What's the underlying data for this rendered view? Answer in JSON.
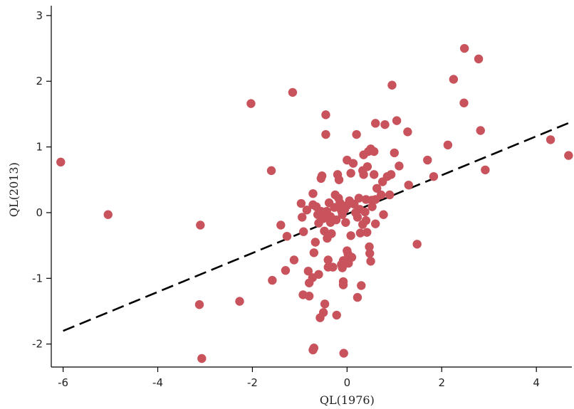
{
  "chart_data": {
    "type": "scatter",
    "xlabel": "QL(1976)",
    "ylabel": "QL(2013)",
    "xlim": [
      -6.25,
      4.75
    ],
    "ylim": [
      -2.35,
      3.15
    ],
    "xticks": [
      -6,
      -4,
      -2,
      0,
      2,
      4
    ],
    "yticks": [
      -2,
      -1,
      0,
      1,
      2,
      3
    ],
    "xtick_labels": [
      "-6",
      "-4",
      "-2",
      "0",
      "2",
      "4"
    ],
    "ytick_labels": [
      "-2",
      "-1",
      "0",
      "1",
      "2",
      "3"
    ],
    "grid": false,
    "legend": "none",
    "marker_color": "#c9535c",
    "line_color": "#000000",
    "fit_line": {
      "style": "dashed",
      "x": [
        -6.0,
        4.7
      ],
      "y": [
        -1.8,
        1.37
      ]
    },
    "points": [
      [
        -6.05,
        0.77
      ],
      [
        -5.05,
        -0.03
      ],
      [
        -3.1,
        -0.19
      ],
      [
        -3.12,
        -1.4
      ],
      [
        -3.07,
        -2.22
      ],
      [
        -2.27,
        -1.35
      ],
      [
        -2.03,
        1.66
      ],
      [
        -1.6,
        0.64
      ],
      [
        -1.58,
        -1.03
      ],
      [
        -1.4,
        -0.19
      ],
      [
        -1.27,
        -0.36
      ],
      [
        -1.3,
        -0.88
      ],
      [
        -1.15,
        1.83
      ],
      [
        -1.12,
        -0.72
      ],
      [
        -0.97,
        0.14
      ],
      [
        -0.95,
        -0.07
      ],
      [
        -0.92,
        -0.29
      ],
      [
        -0.93,
        -1.25
      ],
      [
        -0.85,
        0.04
      ],
      [
        -0.82,
        -0.89
      ],
      [
        -0.8,
        -1.27
      ],
      [
        -0.8,
        -1.07
      ],
      [
        -0.73,
        -0.99
      ],
      [
        -0.72,
        0.29
      ],
      [
        -0.72,
        0.12
      ],
      [
        -0.7,
        -0.61
      ],
      [
        -0.72,
        -2.09
      ],
      [
        -0.7,
        -2.06
      ],
      [
        -0.67,
        -0.45
      ],
      [
        -0.65,
        0.09
      ],
      [
        -0.62,
        -0.03
      ],
      [
        -0.6,
        -0.16
      ],
      [
        -0.6,
        -0.94
      ],
      [
        -0.57,
        -1.6
      ],
      [
        -0.55,
        0.52
      ],
      [
        -0.55,
        0.02
      ],
      [
        -0.53,
        0.56
      ],
      [
        -0.5,
        -0.09
      ],
      [
        -0.48,
        -0.28
      ],
      [
        -0.5,
        -1.52
      ],
      [
        -0.47,
        -1.39
      ],
      [
        -0.45,
        1.49
      ],
      [
        -0.45,
        1.19
      ],
      [
        -0.43,
        0.02
      ],
      [
        -0.42,
        -0.39
      ],
      [
        -0.4,
        -0.72
      ],
      [
        -0.4,
        -0.83
      ],
      [
        -0.38,
        0.15
      ],
      [
        -0.35,
        -0.06
      ],
      [
        -0.35,
        -0.15
      ],
      [
        -0.33,
        -0.32
      ],
      [
        -0.3,
        -0.83
      ],
      [
        -0.27,
        0.08
      ],
      [
        -0.25,
        0.27
      ],
      [
        -0.23,
        -0.11
      ],
      [
        -0.22,
        -1.56
      ],
      [
        -0.2,
        0.58
      ],
      [
        -0.18,
        0.22
      ],
      [
        -0.17,
        0.5
      ],
      [
        -0.15,
        0.15
      ],
      [
        -0.12,
        0.03
      ],
      [
        -0.1,
        -0.03
      ],
      [
        -0.12,
        -0.79
      ],
      [
        -0.1,
        -0.84
      ],
      [
        -0.08,
        -0.73
      ],
      [
        -0.08,
        -1.1
      ],
      [
        -0.08,
        -1.05
      ],
      [
        -0.07,
        -2.14
      ],
      [
        -0.05,
        0.05
      ],
      [
        -0.03,
        -0.15
      ],
      [
        0.0,
        0.8
      ],
      [
        0.0,
        0.11
      ],
      [
        0.0,
        -0.58
      ],
      [
        0.02,
        -0.63
      ],
      [
        0.03,
        -0.7
      ],
      [
        0.03,
        -0.77
      ],
      [
        0.05,
        0.18
      ],
      [
        0.08,
        0.6
      ],
      [
        0.08,
        -0.35
      ],
      [
        0.1,
        -0.68
      ],
      [
        0.13,
        0.75
      ],
      [
        0.15,
        0.13
      ],
      [
        0.18,
        0.0
      ],
      [
        0.2,
        1.19
      ],
      [
        0.22,
        -0.07
      ],
      [
        0.22,
        -1.29
      ],
      [
        0.25,
        0.22
      ],
      [
        0.27,
        0.05
      ],
      [
        0.28,
        -0.31
      ],
      [
        0.3,
        -1.11
      ],
      [
        0.33,
        0.64
      ],
      [
        0.33,
        -0.18
      ],
      [
        0.35,
        0.58
      ],
      [
        0.35,
        0.88
      ],
      [
        0.38,
        0.01
      ],
      [
        0.4,
        0.2
      ],
      [
        0.4,
        -0.12
      ],
      [
        0.42,
        -0.3
      ],
      [
        0.43,
        0.7
      ],
      [
        0.45,
        0.93
      ],
      [
        0.47,
        -0.52
      ],
      [
        0.48,
        -0.62
      ],
      [
        0.5,
        0.97
      ],
      [
        0.5,
        -0.74
      ],
      [
        0.52,
        0.19
      ],
      [
        0.53,
        0.09
      ],
      [
        0.57,
        0.93
      ],
      [
        0.57,
        0.58
      ],
      [
        0.6,
        1.36
      ],
      [
        0.6,
        0.2
      ],
      [
        0.6,
        -0.17
      ],
      [
        0.63,
        0.37
      ],
      [
        0.72,
        0.27
      ],
      [
        0.75,
        0.47
      ],
      [
        0.77,
        -0.03
      ],
      [
        0.8,
        1.34
      ],
      [
        0.85,
        0.55
      ],
      [
        0.9,
        0.27
      ],
      [
        0.93,
        0.58
      ],
      [
        0.95,
        1.94
      ],
      [
        1.0,
        0.91
      ],
      [
        1.05,
        1.4
      ],
      [
        1.1,
        0.71
      ],
      [
        1.28,
        1.23
      ],
      [
        1.3,
        0.42
      ],
      [
        1.48,
        -0.48
      ],
      [
        1.7,
        0.8
      ],
      [
        1.83,
        0.55
      ],
      [
        2.13,
        1.03
      ],
      [
        2.25,
        2.03
      ],
      [
        2.47,
        1.67
      ],
      [
        2.48,
        2.5
      ],
      [
        2.78,
        2.34
      ],
      [
        2.82,
        1.25
      ],
      [
        2.92,
        0.65
      ],
      [
        4.3,
        1.11
      ],
      [
        4.68,
        0.87
      ]
    ]
  }
}
